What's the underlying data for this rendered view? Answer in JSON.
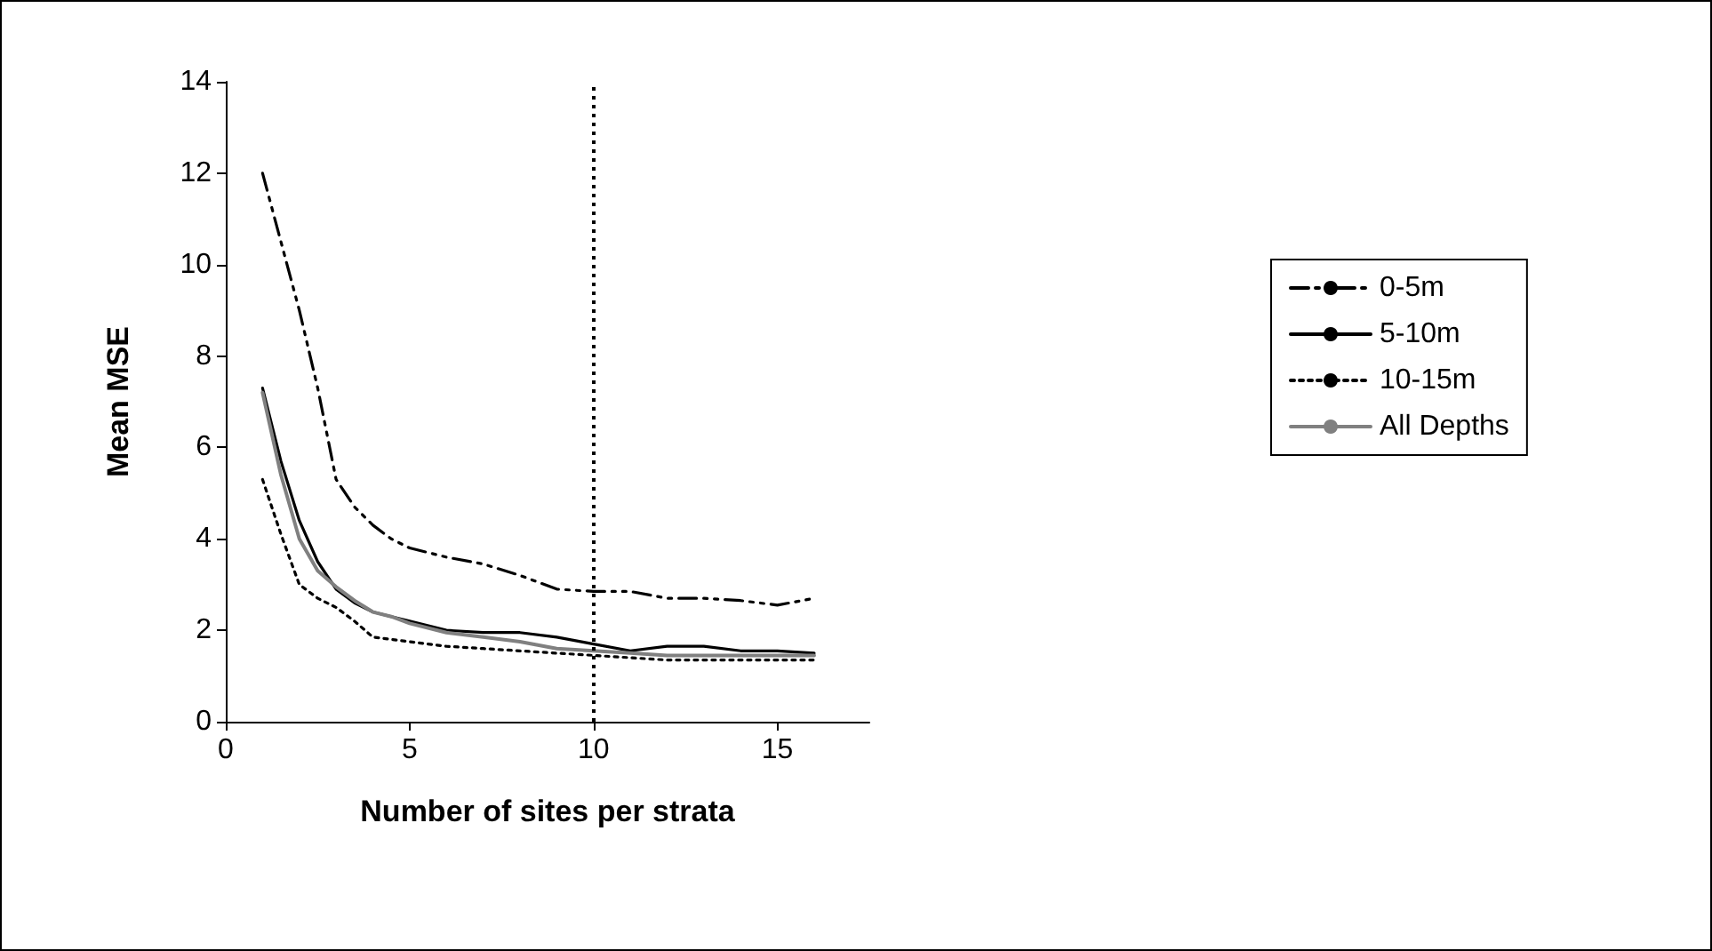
{
  "chart_data": {
    "type": "line",
    "xlabel": "Number of sites per strata",
    "ylabel": "Mean MSE",
    "xlim": [
      0,
      17.5
    ],
    "xticks": [
      0,
      5,
      10,
      15
    ],
    "ylim": [
      0,
      14
    ],
    "yticks": [
      0,
      2,
      4,
      6,
      8,
      10,
      12,
      14
    ],
    "grid": false,
    "legend": "right",
    "marker": "none",
    "x": [
      1,
      1.5,
      2,
      2.5,
      3,
      3.5,
      4,
      4.5,
      5,
      6,
      7,
      8,
      9,
      10,
      11,
      12,
      13,
      14,
      15,
      16
    ],
    "series": [
      {
        "name": "0-5m",
        "color": "#000000",
        "line_style": "dashed",
        "values": [
          12,
          10.5,
          9,
          7.3,
          5.3,
          4.7,
          4.3,
          4.0,
          3.8,
          3.6,
          3.45,
          3.2,
          2.9,
          2.85,
          2.85,
          2.7,
          2.7,
          2.65,
          2.55,
          2.7
        ]
      },
      {
        "name": "5-10m",
        "color": "#000000",
        "line_style": "solid",
        "values": [
          7.3,
          5.7,
          4.4,
          3.5,
          2.9,
          2.6,
          2.4,
          2.3,
          2.2,
          2.0,
          1.95,
          1.95,
          1.85,
          1.7,
          1.55,
          1.65,
          1.65,
          1.55,
          1.55,
          1.5
        ]
      },
      {
        "name": "10-15m",
        "color": "#000000",
        "line_style": "dotted",
        "values": [
          5.3,
          4.1,
          3.0,
          2.7,
          2.5,
          2.2,
          1.85,
          1.8,
          1.75,
          1.65,
          1.6,
          1.55,
          1.5,
          1.45,
          1.4,
          1.35,
          1.35,
          1.35,
          1.35,
          1.35
        ]
      },
      {
        "name": "All Depths",
        "color": "#808080",
        "line_style": "solid",
        "values": [
          7.2,
          5.4,
          4.0,
          3.3,
          2.95,
          2.65,
          2.4,
          2.3,
          2.15,
          1.95,
          1.85,
          1.75,
          1.6,
          1.55,
          1.5,
          1.45,
          1.45,
          1.45,
          1.45,
          1.45
        ]
      }
    ],
    "ref_lines": [
      {
        "axis": "x",
        "value": 10,
        "line_style": "dotted",
        "color": "#000000"
      }
    ]
  }
}
